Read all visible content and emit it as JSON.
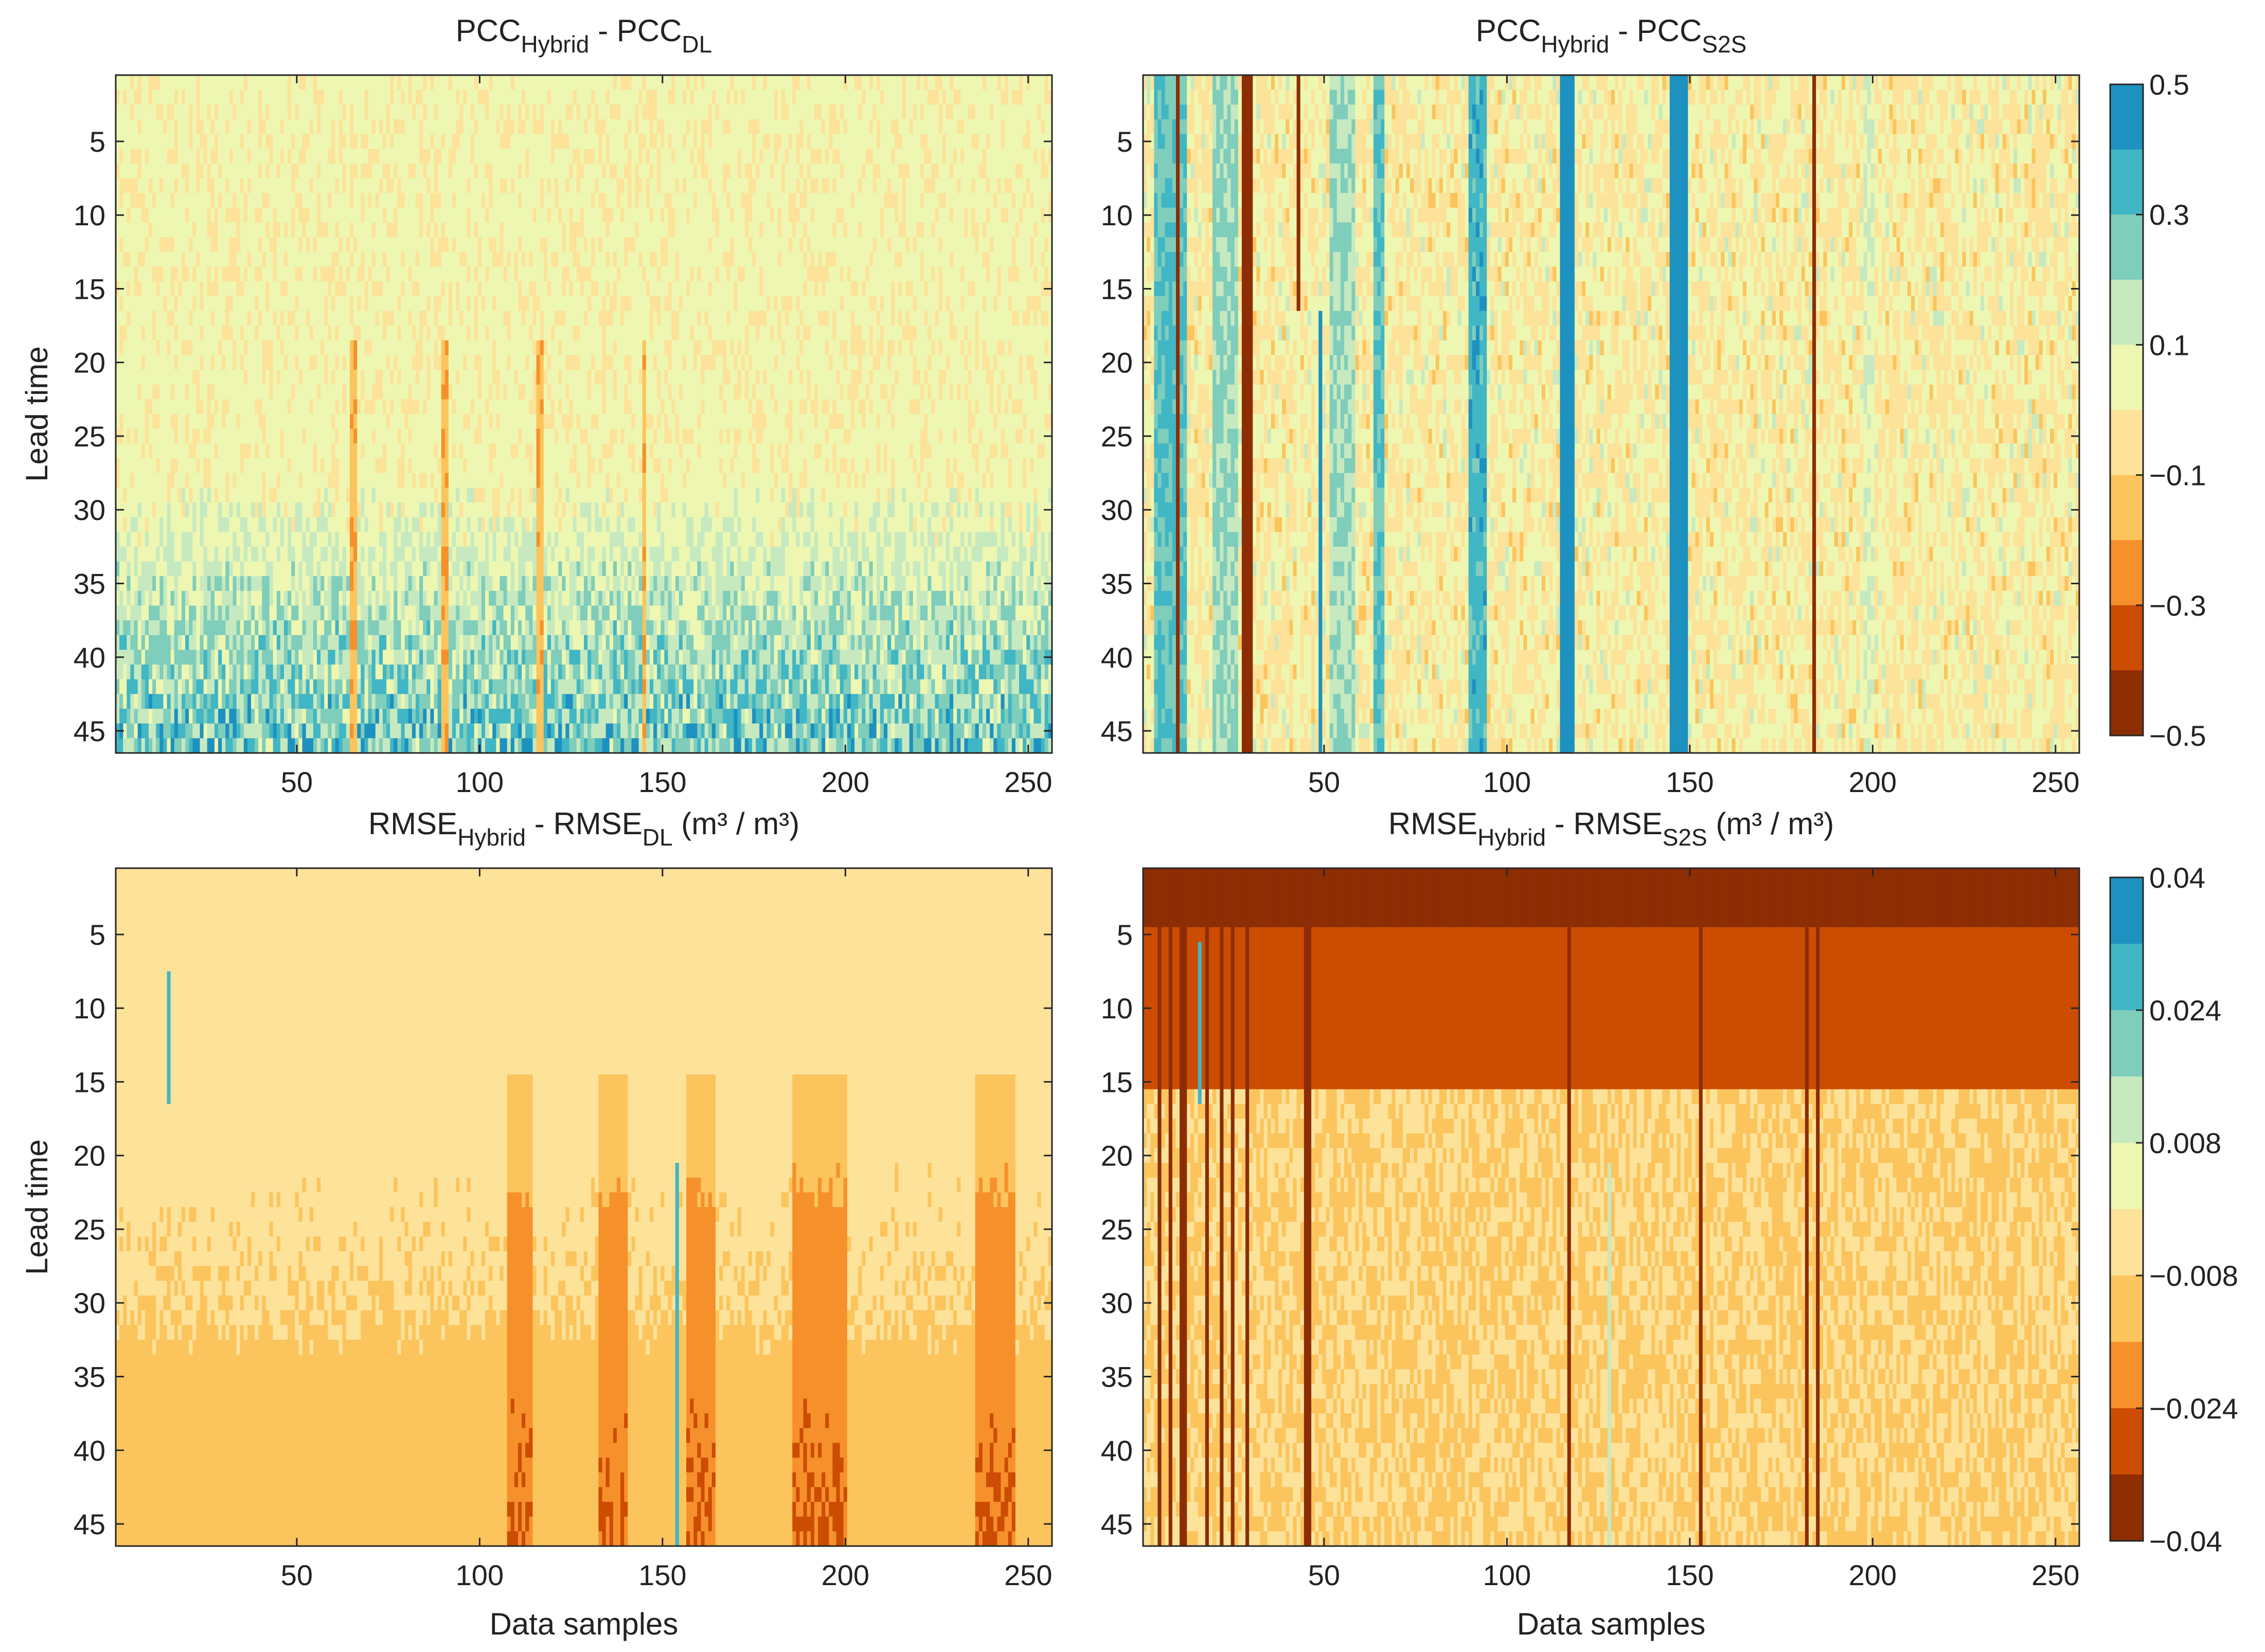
{
  "figure": {
    "x_label": "Data samples",
    "y_label": "Lead time"
  },
  "colorbars": [
    {
      "ticks": [
        "0.5",
        "0.3",
        "0.1",
        "−0.1",
        "−0.3",
        "−0.5"
      ],
      "range": [
        -0.5,
        0.5
      ],
      "colors": [
        "#8c2d04",
        "#cc4c02",
        "#f6902b",
        "#fcc45c",
        "#fde29a",
        "#edf7b1",
        "#c7e9c0",
        "#7fcdbb",
        "#41b6c4",
        "#1d91c0"
      ]
    },
    {
      "ticks": [
        "0.04",
        "0.024",
        "0.008",
        "−0.008",
        "−0.024",
        "−0.04"
      ],
      "range": [
        -0.04,
        0.04
      ],
      "colors": [
        "#8c2d04",
        "#cc4c02",
        "#f6902b",
        "#fcc45c",
        "#fde29a",
        "#edf7b1",
        "#c7e9c0",
        "#7fcdbb",
        "#41b6c4",
        "#1d91c0"
      ]
    }
  ],
  "chart_data": [
    {
      "type": "heatmap",
      "id": "pcc_dl",
      "title": {
        "a": "PCC",
        "sub_a": "Hybrid",
        "mid": " - PCC",
        "sub_b": "DL",
        "tail": ""
      },
      "xlabel": "",
      "ylabel": "Lead time",
      "x_range": [
        1,
        256
      ],
      "y_range": [
        1,
        46
      ],
      "x_ticks": [
        "50",
        "100",
        "150",
        "200",
        "250"
      ],
      "y_ticks": [
        "5",
        "10",
        "15",
        "20",
        "25",
        "30",
        "35",
        "40",
        "45"
      ],
      "value_range": [
        -0.5,
        0.5
      ],
      "profile": "pcc_dl",
      "summary": "Near-zero differences (0 to 0.1) for lead times 1-20; increasing positive differences (0.1-0.4) with lead time beyond ~30; scattered negative streaks near samples 65, 90, 115-118, 145."
    },
    {
      "type": "heatmap",
      "id": "pcc_s2s",
      "title": {
        "a": "PCC",
        "sub_a": "Hybrid",
        "mid": " - PCC",
        "sub_b": "S2S",
        "tail": ""
      },
      "xlabel": "",
      "ylabel": "",
      "x_range": [
        1,
        256
      ],
      "y_range": [
        1,
        46
      ],
      "x_ticks": [
        "50",
        "100",
        "150",
        "200",
        "250"
      ],
      "y_ticks": [
        "5",
        "10",
        "15",
        "20",
        "25",
        "30",
        "35",
        "40",
        "45"
      ],
      "value_range": [
        -0.5,
        0.5
      ],
      "profile": "pcc_s2s",
      "summary": "Strong positive columns (0.3-0.5) near samples 5-12, 22-27, 65, 92, 115-118, 145-148; strong negative columns (-0.5) near samples 10, 28-30, 43, 184."
    },
    {
      "type": "heatmap",
      "id": "rmse_dl",
      "title": {
        "a": "RMSE",
        "sub_a": "Hybrid",
        "mid": " - RMSE",
        "sub_b": "DL",
        "tail": " (m³ / m³)"
      },
      "xlabel": "Data samples",
      "ylabel": "Lead time",
      "x_range": [
        1,
        256
      ],
      "y_range": [
        1,
        46
      ],
      "x_ticks": [
        "50",
        "100",
        "150",
        "200",
        "250"
      ],
      "y_ticks": [
        "5",
        "10",
        "15",
        "20",
        "25",
        "30",
        "35",
        "40",
        "45"
      ],
      "value_range": [
        -0.04,
        0.04
      ],
      "profile": "rmse_dl",
      "summary": "Mostly slightly negative (-0.008 to 0) across all lead times; more negative (-0.024) bands after lead time ~20 near samples 110, 135, 160, 190-200, 240; positive spots near sample 15 (lead 8-16) and 154."
    },
    {
      "type": "heatmap",
      "id": "rmse_s2s",
      "title": {
        "a": "RMSE",
        "sub_a": "Hybrid",
        "mid": " - RMSE",
        "sub_b": "S2S",
        "tail": " (m³ / m³)"
      },
      "xlabel": "Data samples",
      "ylabel": "",
      "x_range": [
        1,
        256
      ],
      "y_range": [
        1,
        46
      ],
      "x_ticks": [
        "50",
        "100",
        "150",
        "200",
        "250"
      ],
      "y_ticks": [
        "5",
        "10",
        "15",
        "20",
        "25",
        "30",
        "35",
        "40",
        "45"
      ],
      "value_range": [
        -0.04,
        0.04
      ],
      "profile": "rmse_s2s",
      "summary": "Strongly negative (-0.024 to -0.04) for early lead times 1-15 across all samples; dark negative columns near samples 5-30, 45, 117, 153, 182-185; weaker negative values at longer lead times."
    }
  ]
}
